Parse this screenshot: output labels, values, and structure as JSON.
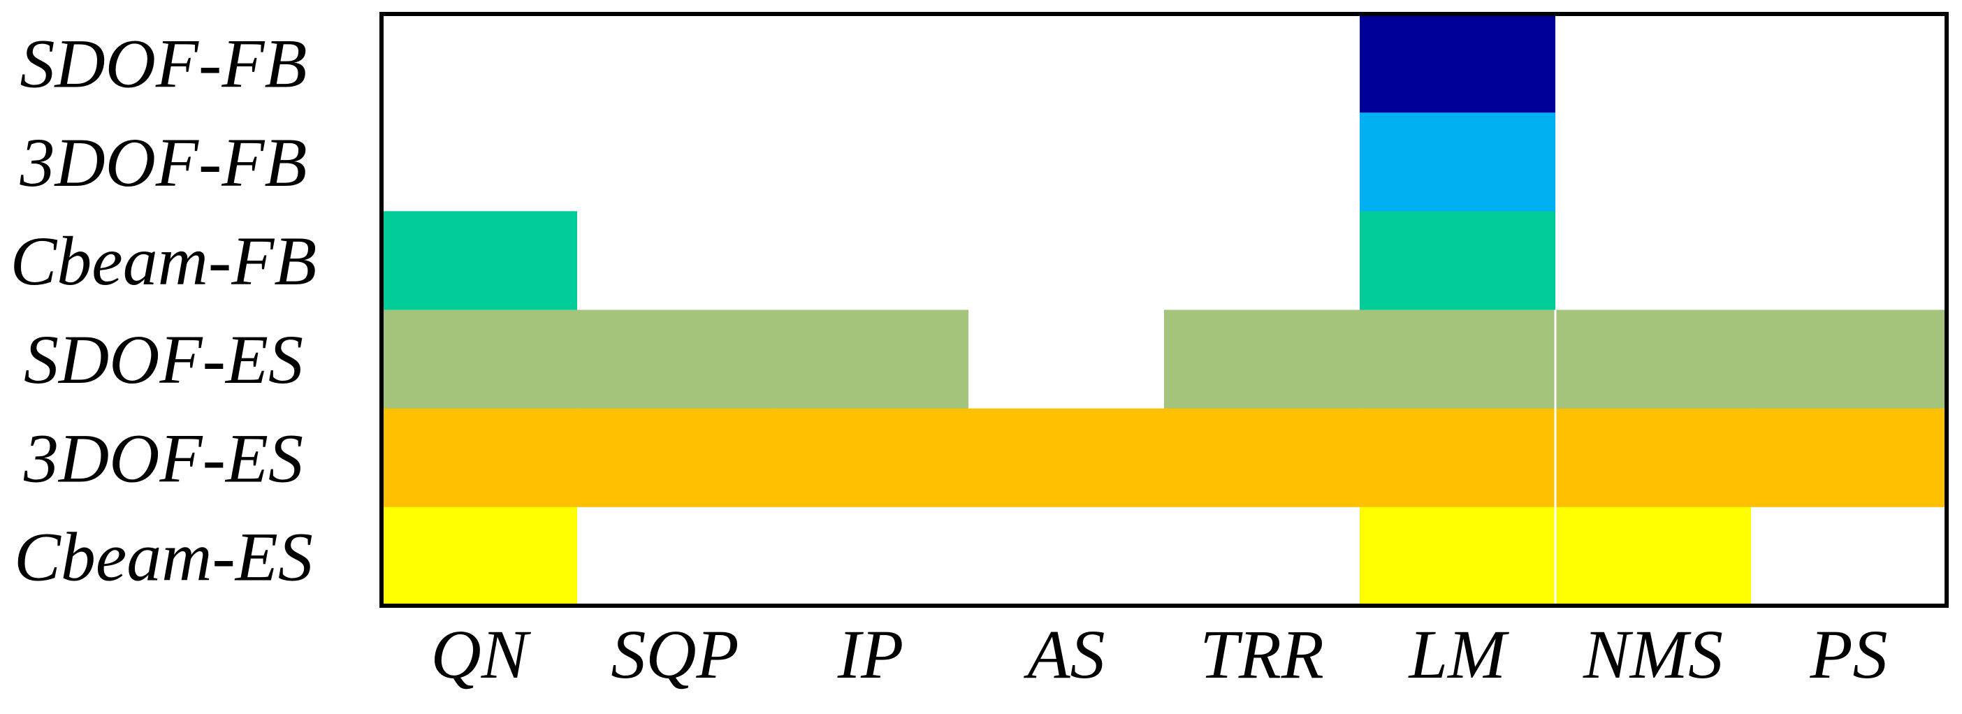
{
  "chart_data": {
    "type": "heatmap",
    "title": "",
    "xlabel": "",
    "ylabel": "",
    "grid": false,
    "legend": "none",
    "x_categories": [
      "QN",
      "SQP",
      "IP",
      "AS",
      "TRR",
      "LM",
      "NMS",
      "PS"
    ],
    "y_categories": [
      "SDOF-FB",
      "3DOF-FB",
      "Cbeam-FB",
      "SDOF-ES",
      "3DOF-ES",
      "Cbeam-ES"
    ],
    "row_colors": {
      "SDOF-FB": "#000099",
      "3DOF-FB": "#00b0f0",
      "Cbeam-FB": "#00cc99",
      "SDOF-ES": "#a4c47c",
      "3DOF-ES": "#ffc000",
      "Cbeam-ES": "#ffff00"
    },
    "empty_color": "#ffffff",
    "matrix": [
      [
        0,
        0,
        0,
        0,
        0,
        1,
        0,
        0
      ],
      [
        0,
        0,
        0,
        0,
        0,
        1,
        0,
        0
      ],
      [
        1,
        0,
        0,
        0,
        0,
        1,
        0,
        0
      ],
      [
        1,
        1,
        1,
        0,
        1,
        1,
        1,
        1
      ],
      [
        1,
        1,
        1,
        1,
        1,
        1,
        1,
        1
      ],
      [
        1,
        0,
        0,
        0,
        0,
        1,
        1,
        0
      ]
    ]
  }
}
